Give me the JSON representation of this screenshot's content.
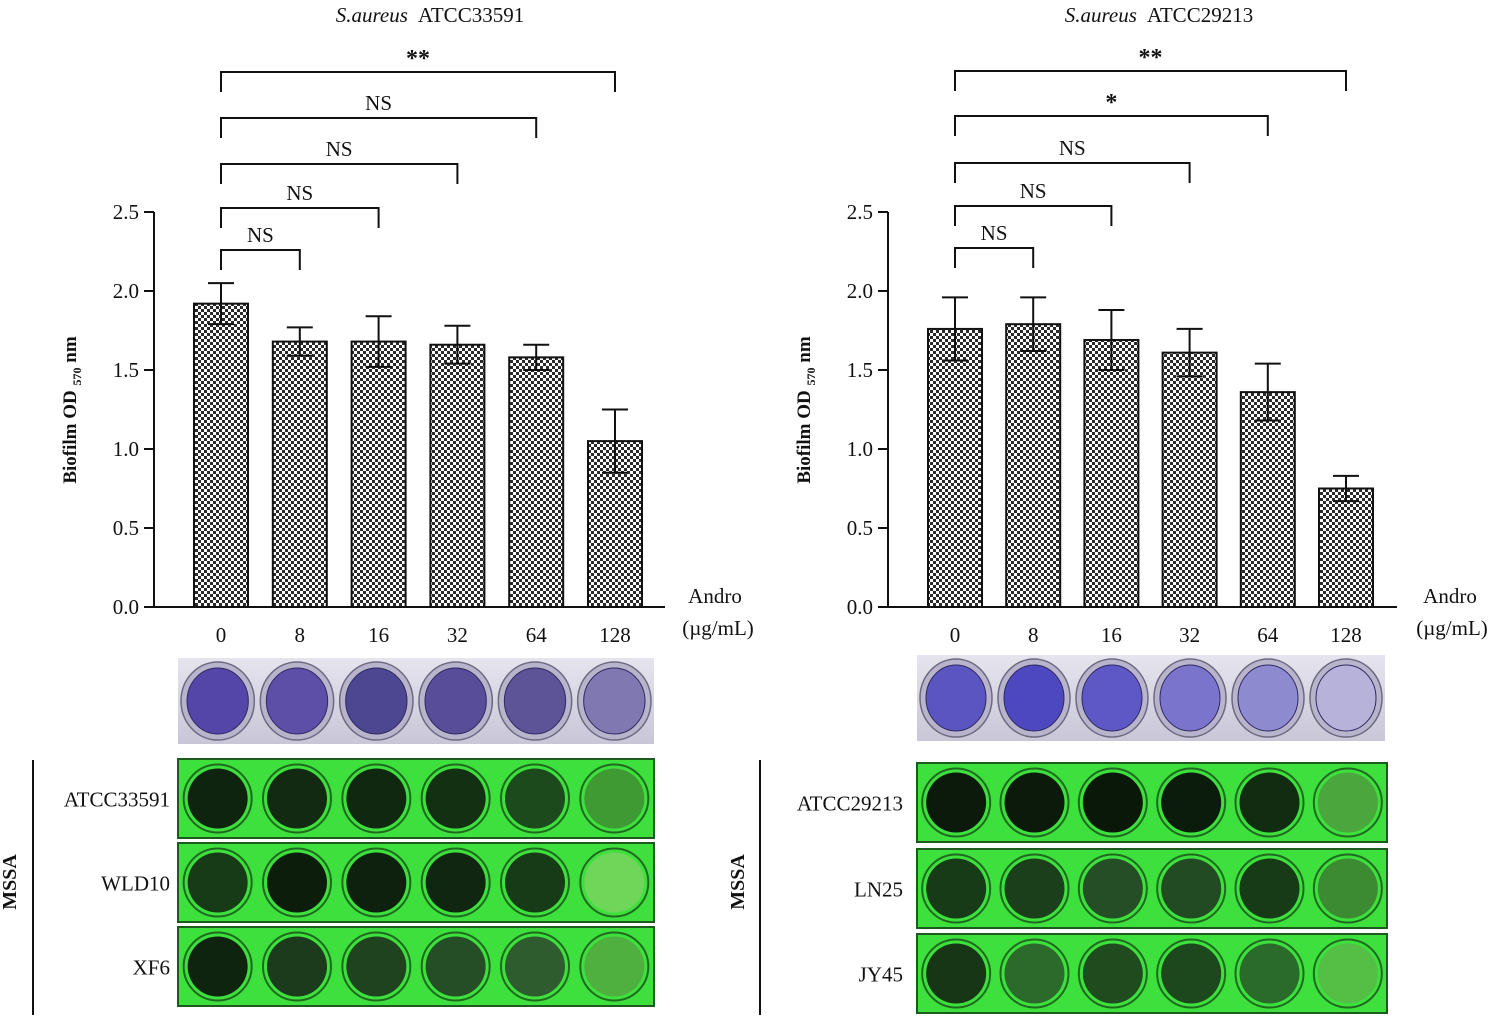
{
  "panels": [
    {
      "title_italic": "S.aureus",
      "title_strain": "ATCC33591",
      "group_label": "MSSA",
      "xaxis_label_line1": "Andro",
      "xaxis_label_line2": "(µg/mL)",
      "strain_rows": [
        "ATCC33591",
        "WLD10",
        "XF6"
      ],
      "well_colors": [
        [
          "#0f240f",
          "#122a12",
          "#102710",
          "#133013",
          "#1d4a1d",
          "#3f9a33"
        ],
        [
          "#173a17",
          "#0c1d0c",
          "#0e200e",
          "#112611",
          "#173a17",
          "#6fd65a"
        ],
        [
          "#0f240f",
          "#1c3b1c",
          "#1f421f",
          "#264e26",
          "#2e5c2e",
          "#4fb040"
        ]
      ],
      "crystal_violet_wells": [
        "#5445a8",
        "#5d4ea8",
        "#4d4690",
        "#574d98",
        "#5d5498",
        "#8078b0"
      ]
    },
    {
      "title_italic": "S.aureus",
      "title_strain": "ATCC29213",
      "group_label": "MSSA",
      "xaxis_label_line1": "Andro",
      "xaxis_label_line2": "(µg/mL)",
      "strain_rows": [
        "ATCC29213",
        "LN25",
        "JY45"
      ],
      "well_colors": [
        [
          "#0b1a0b",
          "#0b1a0b",
          "#0a180a",
          "#0c1c0c",
          "#122c12",
          "#4aa63d"
        ],
        [
          "#173a17",
          "#1a3f1a",
          "#264e26",
          "#234b23",
          "#173a17",
          "#3c8a32"
        ],
        [
          "#163616",
          "#2c6a2c",
          "#1f4b1f",
          "#1d471d",
          "#2a6a2a",
          "#55bf45"
        ]
      ],
      "crystal_violet_wells": [
        "#5a55c0",
        "#4e48c0",
        "#5e58c6",
        "#7a74cc",
        "#8e8ad0",
        "#b6b2da"
      ]
    }
  ],
  "chart_data": [
    {
      "type": "bar",
      "title": "S.aureus ATCC33591",
      "ylabel": "Biofilm OD570 nm",
      "ylabel_main": "Biofilm OD",
      "ylabel_sub": "570",
      "ylabel_unit": " nm",
      "xlabel": "Andro (µg/mL)",
      "categories": [
        "0",
        "8",
        "16",
        "32",
        "64",
        "128"
      ],
      "values": [
        1.92,
        1.68,
        1.68,
        1.66,
        1.58,
        1.05
      ],
      "errors": [
        0.13,
        0.09,
        0.16,
        0.12,
        0.08,
        0.2
      ],
      "ylim": [
        0,
        2.5
      ],
      "yticks": [
        "0.0",
        "0.5",
        "1.0",
        "1.5",
        "2.0",
        "2.5"
      ],
      "comparisons": [
        {
          "from": 0,
          "to": 1,
          "label": "NS"
        },
        {
          "from": 0,
          "to": 2,
          "label": "NS"
        },
        {
          "from": 0,
          "to": 3,
          "label": "NS"
        },
        {
          "from": 0,
          "to": 4,
          "label": "NS"
        },
        {
          "from": 0,
          "to": 5,
          "label": "**"
        }
      ]
    },
    {
      "type": "bar",
      "title": "S.aureus ATCC29213",
      "ylabel": "Biofilm OD570 nm",
      "ylabel_main": "Biofilm OD",
      "ylabel_sub": "570",
      "ylabel_unit": " nm",
      "xlabel": "Andro (µg/mL)",
      "categories": [
        "0",
        "8",
        "16",
        "32",
        "64",
        "128"
      ],
      "values": [
        1.76,
        1.79,
        1.69,
        1.61,
        1.36,
        0.75
      ],
      "errors": [
        0.2,
        0.17,
        0.19,
        0.15,
        0.18,
        0.08
      ],
      "ylim": [
        0,
        2.5
      ],
      "yticks": [
        "0.0",
        "0.5",
        "1.0",
        "1.5",
        "2.0",
        "2.5"
      ],
      "comparisons": [
        {
          "from": 0,
          "to": 1,
          "label": "NS"
        },
        {
          "from": 0,
          "to": 2,
          "label": "NS"
        },
        {
          "from": 0,
          "to": 3,
          "label": "NS"
        },
        {
          "from": 0,
          "to": 4,
          "label": "*"
        },
        {
          "from": 0,
          "to": 5,
          "label": "**"
        }
      ]
    }
  ]
}
